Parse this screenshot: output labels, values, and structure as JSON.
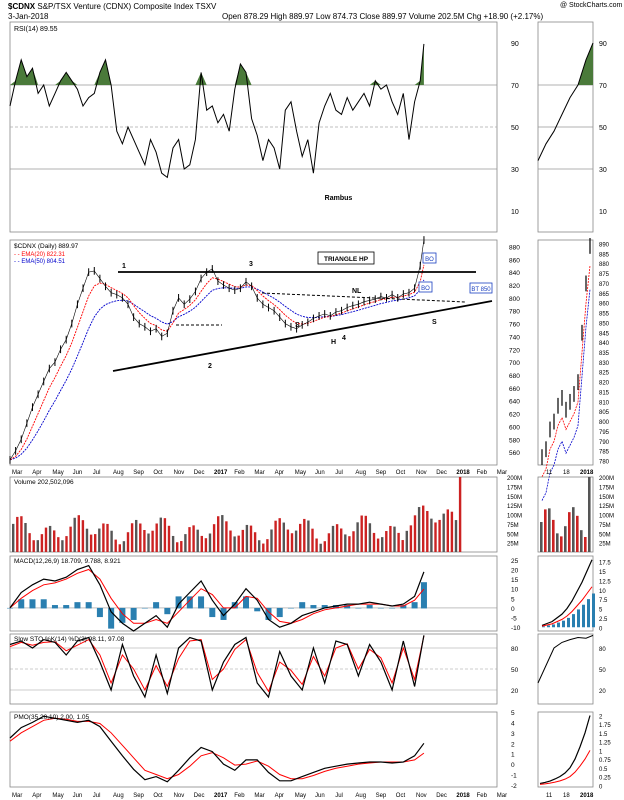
{
  "header": {
    "symbol": "$CDNX",
    "name": "S&P/TSX Venture (CDNX) Composite Index  TSXV",
    "date": "3-Jan-2018",
    "stats": "Open 878.29  High 889.97  Low 874.73  Close 889.97  Volume 202.5M  Chg +18.90 (+2.17%)",
    "copyright": "@ StockCharts.com"
  },
  "colors": {
    "price": "#000000",
    "ema20": "#ff0000",
    "ema50": "#0000cc",
    "volume_up": "#555555",
    "volume_down": "#cc2222",
    "rsi_fill": "#4a7a3a",
    "macd_hist": "#2a7fb0",
    "annotation_blue": "#1a3fc0"
  },
  "chart_data": [
    {
      "type": "line",
      "panel": "rsi",
      "legend": "RSI(14) 89.55",
      "ylim": [
        0,
        100
      ],
      "yticks": [
        10,
        30,
        50,
        70,
        90
      ],
      "levels": [
        30,
        50,
        70
      ],
      "x": [
        0,
        6,
        12,
        18,
        24,
        30,
        36,
        42,
        48,
        54,
        60,
        66,
        72,
        78,
        84,
        90,
        96,
        102,
        108,
        114,
        120,
        126,
        132,
        138,
        144,
        150,
        156,
        162,
        168,
        174,
        180,
        186,
        192,
        198,
        204,
        210,
        216,
        222,
        228,
        234,
        240,
        246,
        252,
        258,
        264,
        270,
        276,
        282,
        288,
        294,
        300,
        306,
        312,
        318,
        324,
        330,
        336,
        342,
        348,
        354,
        360,
        366,
        372,
        378,
        384,
        390,
        396,
        402,
        408,
        414,
        420,
        426,
        432,
        438,
        442
      ],
      "values": [
        60,
        72,
        82,
        74,
        78,
        66,
        70,
        60,
        66,
        72,
        76,
        72,
        68,
        60,
        64,
        66,
        76,
        82,
        70,
        48,
        42,
        50,
        44,
        38,
        32,
        44,
        38,
        28,
        26,
        40,
        44,
        30,
        32,
        44,
        76,
        58,
        60,
        52,
        56,
        48,
        68,
        80,
        76,
        54,
        46,
        34,
        44,
        40,
        30,
        58,
        62,
        48,
        36,
        44,
        28,
        52,
        60,
        66,
        58,
        56,
        64,
        58,
        62,
        66,
        60,
        72,
        68,
        70,
        62,
        56,
        66,
        44,
        62,
        72,
        89.55
      ],
      "annotations": [
        "Rambus"
      ]
    },
    {
      "type": "line",
      "panel": "price",
      "legend": "$CDNX (Daily) 889.97",
      "series": [
        {
          "name": "EMA(20) 822.31"
        },
        {
          "name": "EMA(50) 804.51"
        }
      ],
      "ylim": [
        540,
        890
      ],
      "yticks": [
        560,
        580,
        600,
        620,
        640,
        660,
        680,
        700,
        720,
        740,
        760,
        780,
        800,
        820,
        840,
        860,
        880
      ],
      "x": [
        0,
        6,
        12,
        18,
        24,
        30,
        36,
        42,
        48,
        54,
        60,
        66,
        72,
        78,
        84,
        90,
        96,
        102,
        108,
        114,
        120,
        126,
        132,
        138,
        144,
        150,
        156,
        162,
        168,
        174,
        180,
        186,
        192,
        198,
        204,
        210,
        216,
        222,
        228,
        234,
        240,
        246,
        252,
        258,
        264,
        270,
        276,
        282,
        288,
        294,
        300,
        306,
        312,
        318,
        324,
        330,
        336,
        342,
        348,
        354,
        360,
        366,
        372,
        378,
        384,
        390,
        396,
        402,
        408,
        414,
        420,
        426,
        432,
        438,
        442
      ],
      "close": [
        548,
        562,
        580,
        605,
        630,
        650,
        670,
        690,
        700,
        720,
        735,
        760,
        790,
        815,
        840,
        842,
        830,
        818,
        808,
        805,
        800,
        790,
        770,
        760,
        755,
        748,
        752,
        740,
        745,
        780,
        800,
        790,
        798,
        810,
        830,
        840,
        845,
        826,
        820,
        815,
        812,
        815,
        825,
        818,
        800,
        790,
        785,
        780,
        770,
        760,
        755,
        752,
        758,
        762,
        768,
        772,
        775,
        772,
        778,
        780,
        785,
        788,
        790,
        794,
        796,
        798,
        802,
        800,
        805,
        800,
        806,
        808,
        815,
        850,
        889.97
      ],
      "annotations": {
        "pattern": "TRIANGLE HP",
        "labels": [
          "1",
          "2",
          "3",
          "4",
          "S",
          "S",
          "H",
          "NL"
        ],
        "breakouts": [
          "BO",
          "BO",
          "BT 850"
        ]
      },
      "xlabels": [
        "Mar",
        "Apr",
        "May",
        "Jun",
        "Jul",
        "Aug",
        "Sep",
        "Oct",
        "Nov",
        "Dec",
        "2017",
        "Feb",
        "Mar",
        "Apr",
        "May",
        "Jun",
        "Jul",
        "Aug",
        "Sep",
        "Oct",
        "Nov",
        "Dec",
        "2018",
        "Feb",
        "Mar"
      ]
    },
    {
      "type": "bar",
      "panel": "volume",
      "legend": "Volume 202,502,096",
      "ylim": [
        0,
        200
      ],
      "yticks_label": [
        "25M",
        "50M",
        "75M",
        "100M",
        "125M",
        "150M",
        "175M",
        "200M"
      ]
    },
    {
      "type": "line",
      "panel": "macd",
      "legend": "MACD(12,26,9) 18.709, 9.788, 8.921",
      "ylim": [
        -12,
        27
      ],
      "yticks": [
        -10,
        -5,
        0,
        5,
        10,
        15,
        20,
        25
      ],
      "x": [
        0,
        12,
        24,
        36,
        48,
        60,
        72,
        84,
        96,
        108,
        120,
        132,
        144,
        156,
        168,
        180,
        192,
        204,
        216,
        228,
        240,
        252,
        264,
        276,
        288,
        300,
        312,
        324,
        336,
        348,
        360,
        372,
        384,
        396,
        408,
        420,
        432,
        442
      ],
      "macd": [
        0,
        8,
        12,
        15,
        14,
        16,
        20,
        22,
        12,
        -2,
        -8,
        -12,
        -8,
        -4,
        -10,
        2,
        8,
        14,
        4,
        -4,
        2,
        10,
        4,
        -6,
        -10,
        -8,
        -4,
        -2,
        0,
        1,
        2,
        2,
        3,
        2,
        1,
        2,
        6,
        18.709
      ],
      "signal": [
        0,
        5,
        9,
        12,
        13,
        15,
        18,
        20,
        15,
        5,
        -3,
        -8,
        -8,
        -6,
        -8,
        -2,
        4,
        10,
        7,
        0,
        0,
        6,
        5,
        -2,
        -7,
        -8,
        -6,
        -3,
        -1,
        0,
        1,
        2,
        2,
        2,
        1,
        1,
        4,
        9.788
      ]
    },
    {
      "type": "line",
      "panel": "stochastic",
      "legend": "Slow STO %K(14) %D(3) 98.11, 97.08",
      "ylim": [
        0,
        100
      ],
      "yticks": [
        20,
        50,
        80
      ],
      "x": [
        0,
        12,
        24,
        36,
        48,
        60,
        72,
        84,
        96,
        108,
        120,
        132,
        144,
        156,
        168,
        180,
        192,
        204,
        216,
        228,
        240,
        252,
        264,
        276,
        288,
        300,
        312,
        324,
        336,
        348,
        360,
        372,
        384,
        396,
        408,
        420,
        432,
        442
      ],
      "k": [
        85,
        90,
        80,
        92,
        88,
        70,
        90,
        95,
        60,
        20,
        85,
        40,
        10,
        70,
        15,
        80,
        95,
        90,
        20,
        60,
        85,
        95,
        30,
        10,
        75,
        40,
        20,
        80,
        30,
        90,
        85,
        40,
        85,
        60,
        20,
        90,
        25,
        98.11
      ],
      "d": [
        82,
        88,
        84,
        88,
        89,
        76,
        84,
        92,
        70,
        30,
        70,
        50,
        20,
        55,
        25,
        65,
        90,
        92,
        35,
        50,
        78,
        92,
        45,
        18,
        60,
        48,
        28,
        68,
        40,
        80,
        86,
        50,
        78,
        66,
        30,
        80,
        35,
        97.08
      ]
    },
    {
      "type": "line",
      "panel": "pmo",
      "legend": "PMO(35,20,10) 2.00, 1.05",
      "ylim": [
        -2.2,
        5
      ],
      "yticks": [
        -2,
        -1,
        0,
        1,
        2,
        3,
        4,
        5
      ],
      "x": [
        0,
        12,
        24,
        36,
        48,
        60,
        72,
        84,
        96,
        108,
        120,
        132,
        144,
        156,
        168,
        180,
        192,
        204,
        216,
        228,
        240,
        252,
        264,
        276,
        288,
        300,
        312,
        324,
        336,
        348,
        360,
        372,
        384,
        396,
        408,
        420,
        432,
        442
      ],
      "pmo": [
        2.5,
        3.5,
        4,
        4.6,
        4.4,
        4.2,
        4,
        4.2,
        3.6,
        2.2,
        0.8,
        -0.5,
        -1.5,
        -1.2,
        -1.7,
        -0.6,
        0.6,
        1.6,
        1.2,
        0,
        -0.6,
        0.4,
        0.4,
        -0.8,
        -1.6,
        -1.6,
        -1.2,
        -0.8,
        -0.4,
        -0.2,
        0,
        0.1,
        0.2,
        0.2,
        0.1,
        0.2,
        0.8,
        2.0
      ],
      "signal": [
        2.2,
        3,
        3.6,
        4.2,
        4.4,
        4.3,
        4.1,
        4.1,
        3.9,
        3,
        1.8,
        0.6,
        -0.6,
        -1,
        -1.4,
        -1,
        -0.2,
        0.8,
        1.1,
        0.6,
        -0.1,
        0,
        0.3,
        -0.2,
        -1,
        -1.4,
        -1.4,
        -1.1,
        -0.7,
        -0.4,
        -0.2,
        0,
        0.1,
        0.2,
        0.2,
        0.2,
        0.4,
        1.05
      ]
    }
  ],
  "side_panel": {
    "xlabels": [
      "11",
      "18",
      "2018"
    ],
    "price_yticks": [
      780,
      785,
      790,
      795,
      800,
      805,
      810,
      815,
      820,
      825,
      830,
      835,
      840,
      845,
      850,
      855,
      860,
      865,
      870,
      875,
      880,
      885,
      890
    ],
    "macd_yticks": [
      0,
      2.5,
      5,
      7.5,
      10,
      12.5,
      15,
      17.5
    ],
    "pmo_yticks": [
      0,
      0.25,
      0.5,
      0.75,
      1,
      1.25,
      1.5,
      1.75,
      2
    ]
  }
}
